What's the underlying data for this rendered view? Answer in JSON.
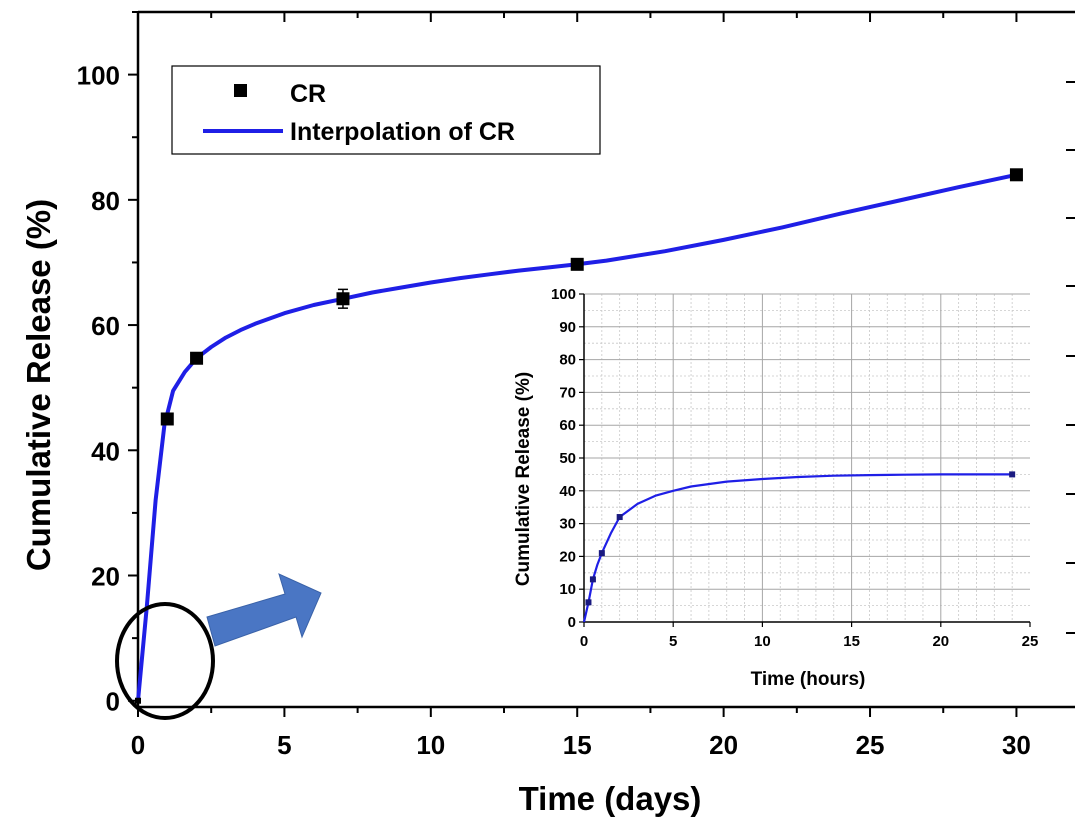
{
  "chart_data": [
    {
      "type": "scatter",
      "title": "",
      "xlabel": "Time (days)",
      "ylabel": "Cumulative Release (%)",
      "xlim": [
        0,
        32
      ],
      "ylim": [
        -1,
        110
      ],
      "xticks": [
        "0",
        "5",
        "10",
        "15",
        "20",
        "25",
        "30"
      ],
      "yticks": [
        "0",
        "20",
        "40",
        "60",
        "80",
        "100"
      ],
      "legend_position": "top-left",
      "grid": false,
      "series": [
        {
          "name": "CR",
          "kind": "markers",
          "color": "#000000",
          "x": [
            0,
            1,
            2,
            7,
            15,
            30
          ],
          "y": [
            0,
            45,
            54.7,
            64.2,
            69.7,
            84
          ],
          "error": [
            0,
            0,
            0,
            1.5,
            0.8,
            0.5
          ]
        },
        {
          "name": "Interpolation of CR",
          "kind": "line",
          "color": "#1f1fe6",
          "x": [
            0,
            0.3,
            0.6,
            0.9,
            1.2,
            1.6,
            2,
            2.5,
            3,
            3.5,
            4,
            5,
            6,
            7,
            8,
            9,
            10,
            11,
            12,
            13,
            14,
            15,
            16,
            18,
            20,
            22,
            24,
            26,
            28,
            30
          ],
          "y": [
            0,
            15,
            32,
            44,
            49.5,
            52.5,
            54.7,
            56.5,
            58,
            59.2,
            60.2,
            61.9,
            63.2,
            64.2,
            65.2,
            66,
            66.8,
            67.5,
            68.1,
            68.7,
            69.2,
            69.7,
            70.3,
            71.8,
            73.6,
            75.6,
            77.8,
            79.9,
            82,
            84
          ]
        }
      ]
    },
    {
      "type": "scatter",
      "title": "",
      "xlabel": "Time (hours)",
      "ylabel": "Cumulative Release (%)",
      "xlim": [
        0,
        25
      ],
      "ylim": [
        0,
        100
      ],
      "xticks": [
        "0",
        "5",
        "10",
        "15",
        "20",
        "25"
      ],
      "yticks": [
        "0",
        "10",
        "20",
        "30",
        "40",
        "50",
        "60",
        "70",
        "80",
        "90",
        "100"
      ],
      "grid": true,
      "series": [
        {
          "name": "CR",
          "kind": "markers",
          "color": "#1a1a80",
          "x": [
            0.25,
            0.5,
            1,
            2,
            24
          ],
          "y": [
            6,
            13,
            21,
            32,
            45
          ]
        },
        {
          "name": "Interpolation of CR",
          "kind": "line",
          "color": "#1f1fe6",
          "x": [
            0,
            0.25,
            0.5,
            0.75,
            1,
            1.5,
            2,
            3,
            4,
            5,
            6,
            8,
            10,
            12,
            14,
            16,
            18,
            20,
            22,
            24
          ],
          "y": [
            0,
            6,
            13,
            17.5,
            21,
            27,
            32,
            36,
            38.5,
            40,
            41.3,
            42.8,
            43.6,
            44.2,
            44.6,
            44.8,
            44.9,
            45,
            45,
            45
          ]
        }
      ]
    }
  ]
}
